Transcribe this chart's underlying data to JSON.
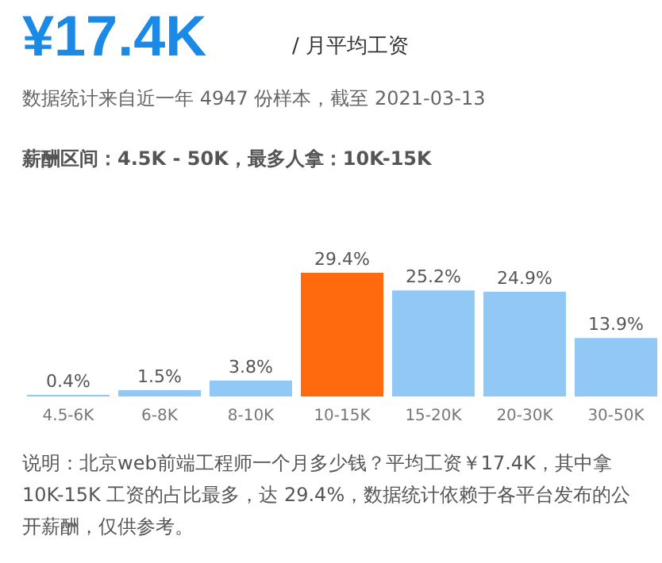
{
  "chart_data": {
    "type": "bar",
    "title": "¥17.4K",
    "subtitle": "/ 月平均工资",
    "annotations": [
      "数据统计来自近一年 4947 份样本，截至 2021-03-13",
      "薪酬区间：4.5K - 50K，最多人拿：10K-15K",
      "说明：北京web前端工程师一个月多少钱？平均工资￥17.4K，其中拿 10K-15K 工资的占比最多，达 29.4%，数据统计依赖于各平台发布的公开薪酬，仅供参考。"
    ],
    "categories": [
      "4.5-6K",
      "6-8K",
      "8-10K",
      "10-15K",
      "15-20K",
      "20-30K",
      "30-50K"
    ],
    "values": [
      0.4,
      1.5,
      3.8,
      29.4,
      25.2,
      24.9,
      13.9
    ],
    "colors": [
      "#91c8f6",
      "#91c8f6",
      "#91c8f6",
      "#ff6a0f",
      "#91c8f6",
      "#91c8f6",
      "#91c8f6"
    ],
    "value_labels": [
      "0.4%",
      "1.5%",
      "3.8%",
      "29.4%",
      "25.2%",
      "24.9%",
      "13.9%"
    ]
  }
}
